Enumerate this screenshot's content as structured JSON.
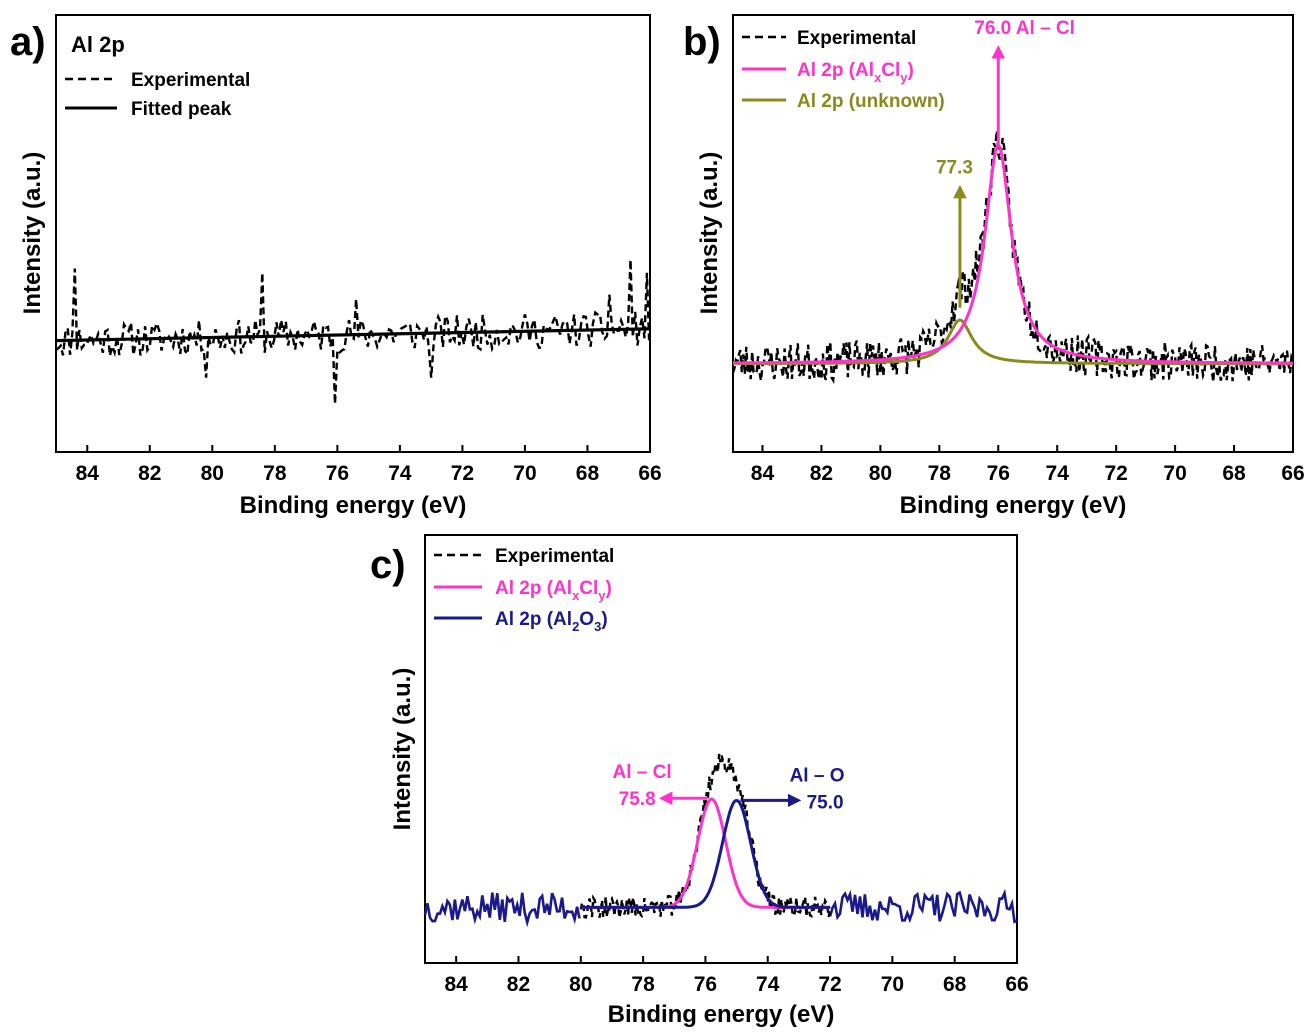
{
  "chart_data": [
    {
      "panel": "a)",
      "type": "line",
      "title": "Al 2p",
      "xlabel": "Binding energy (eV)",
      "ylabel": "Intensity (a.u.)",
      "xlim": [
        85,
        66
      ],
      "ylim": [
        0,
        1
      ],
      "x_ticks": [
        "84",
        "82",
        "80",
        "78",
        "76",
        "74",
        "72",
        "70",
        "68",
        "66"
      ],
      "x_reversed": true,
      "legend_position": "top-left",
      "series": [
        {
          "name": "Experimental",
          "style": "dashed",
          "color": "#000000",
          "kind": "noisy-background",
          "baseline": [
            0.255,
            0.282
          ],
          "noise_amplitude": 0.04,
          "spikes": [
            {
              "x": 84.4,
              "y": 0.42
            },
            {
              "x": 78.4,
              "y": 0.41
            },
            {
              "x": 76.1,
              "y": 0.11
            },
            {
              "x": 80.2,
              "y": 0.17
            },
            {
              "x": 66.6,
              "y": 0.44
            },
            {
              "x": 66.1,
              "y": 0.41
            },
            {
              "x": 75.4,
              "y": 0.35
            },
            {
              "x": 73.0,
              "y": 0.17
            },
            {
              "x": 67.3,
              "y": 0.36
            }
          ]
        },
        {
          "name": "Fitted peak",
          "style": "solid",
          "color": "#000000",
          "points": [
            [
              85,
              0.255
            ],
            [
              66,
              0.282
            ]
          ]
        }
      ]
    },
    {
      "panel": "b)",
      "type": "line",
      "title": "",
      "xlabel": "Binding energy (eV)",
      "ylabel": "Intensity (a.u.)",
      "xlim": [
        85,
        66
      ],
      "ylim": [
        0,
        1
      ],
      "x_ticks": [
        "84",
        "82",
        "80",
        "78",
        "76",
        "74",
        "72",
        "70",
        "68",
        "66"
      ],
      "x_reversed": true,
      "legend_position": "top-left",
      "series": [
        {
          "name": "Experimental",
          "style": "dashed",
          "color": "#000000",
          "kind": "noisy-sum",
          "noise_amplitude": 0.045
        },
        {
          "name_parts": [
            "Al 2p (Al",
            "x",
            "Cl",
            "y",
            ")"
          ],
          "style": "solid",
          "color": "#ff33cc",
          "shape": "lorentzian",
          "center": 76.0,
          "hwhm": 0.55,
          "amplitude": 0.5,
          "baseline": 0.202
        },
        {
          "name_parts": [
            "Al 2p (unknown)"
          ],
          "style": "solid",
          "color": "#8b8a1e",
          "shape": "lorentzian",
          "center": 77.3,
          "hwhm": 0.5,
          "amplitude": 0.1,
          "baseline": 0.202
        }
      ],
      "annotations": [
        {
          "label": "76.0  Al – Cl",
          "x": 76.0,
          "y_from": 0.7,
          "y_to": 0.925,
          "color": "#ff33cc",
          "anchor": "right"
        },
        {
          "label": "77.3",
          "x": 77.3,
          "y_from": 0.33,
          "y_to": 0.605,
          "color": "#8b8a1e",
          "anchor": "left"
        }
      ]
    },
    {
      "panel": "c)",
      "type": "line",
      "title": "",
      "xlabel": "Binding energy (eV)",
      "ylabel": "Intensity (a.u.)",
      "xlim": [
        85,
        66
      ],
      "ylim": [
        0,
        1
      ],
      "x_ticks": [
        "84",
        "82",
        "80",
        "78",
        "76",
        "74",
        "72",
        "70",
        "68",
        "66"
      ],
      "x_reversed": true,
      "legend_position": "top-left",
      "series": [
        {
          "name": "Experimental",
          "style": "dashed",
          "color": "#000000",
          "kind": "noisy-sum",
          "range": [
            80,
            72
          ],
          "noise_amplitude": 0.025
        },
        {
          "name_parts": [
            "Al 2p (Al",
            "x",
            "Cl",
            "y",
            ")"
          ],
          "style": "solid",
          "color": "#ff33cc",
          "shape": "gaussian",
          "center": 75.8,
          "sigma": 0.45,
          "amplitude": 0.253,
          "baseline": 0.13,
          "range": [
            80,
            72
          ]
        },
        {
          "name_parts": [
            "Al 2p (Al",
            "2",
            "O",
            "3",
            ")"
          ],
          "style": "solid",
          "color": "#1a1a8c",
          "shape": "gaussian",
          "center": 75.0,
          "sigma": 0.45,
          "amplitude": 0.25,
          "baseline": 0.13,
          "range": [
            80,
            72
          ],
          "outer_noise_amplitude": 0.035
        }
      ],
      "annotations": [
        {
          "line1": "Al – Cl",
          "line2": "75.8",
          "x": 75.8,
          "y": 0.385,
          "color": "#ff33cc",
          "direction": "left"
        },
        {
          "line1": "Al – O",
          "line2": "75.0",
          "x": 75.0,
          "y": 0.38,
          "color": "#1a1a8c",
          "direction": "right"
        }
      ]
    }
  ]
}
